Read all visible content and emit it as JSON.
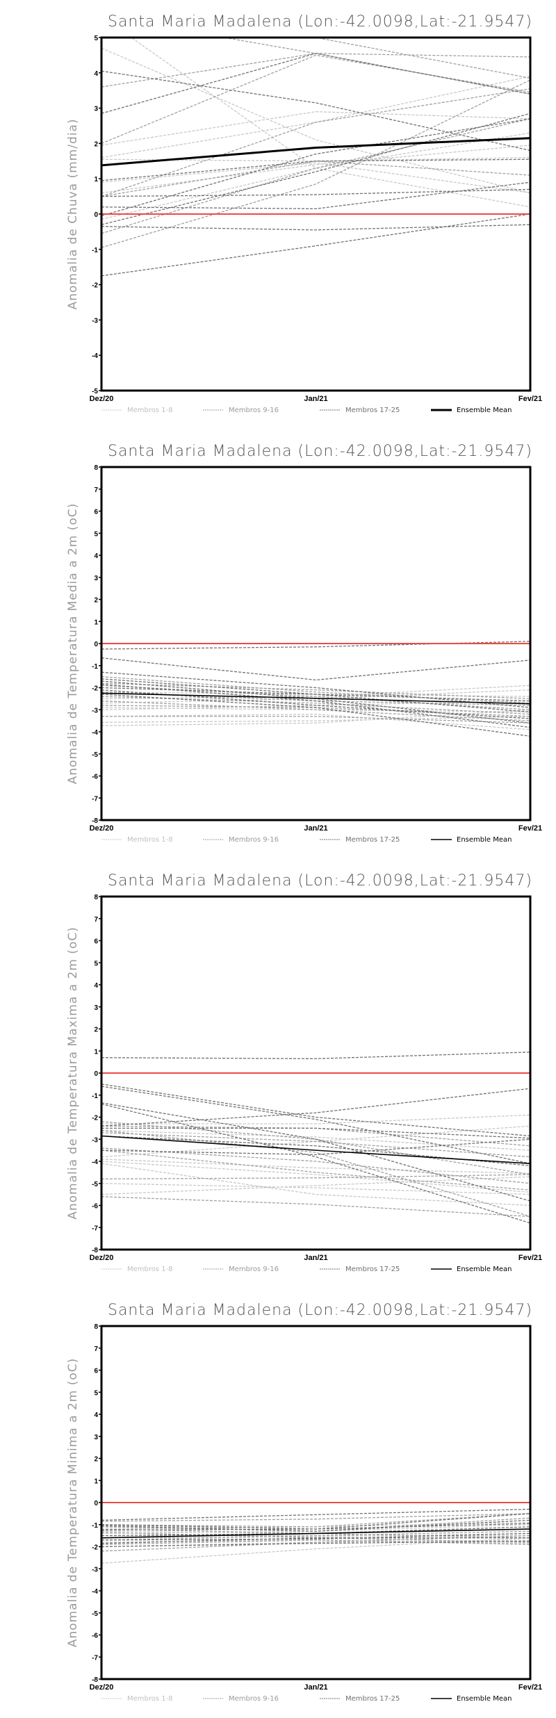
{
  "colors": {
    "members_1_8": "#c8c8c8",
    "members_9_16": "#a0a0a0",
    "members_17_25": "#707070",
    "mean": "#000000",
    "zero": "#f04848"
  },
  "chart_data": [
    {
      "type": "line",
      "title": "Santa Maria Madalena (Lon:-42.0098,Lat:-21.9547)",
      "ylabel": "Anomalia de Chuva (mm/dia)",
      "x": [
        "Dez/20",
        "Jan/21",
        "Fev/21"
      ],
      "ylim": [
        -5,
        5
      ],
      "yticks": [
        "-5",
        "-4",
        "-3",
        "-2",
        "-1",
        "0",
        "1",
        "2",
        "3",
        "4",
        "5"
      ],
      "legend": [
        "Membros 1-8",
        "Membros 9-16",
        "Membros 17-25",
        "Ensemble Mean"
      ],
      "members": [
        [
          4.7,
          2.1,
          0.6
        ],
        [
          5.6,
          1.3,
          0.2
        ],
        [
          1.95,
          2.9,
          2.7
        ],
        [
          1.6,
          2.6,
          3.9
        ],
        [
          1.55,
          1.5,
          1.6
        ],
        [
          0.6,
          1.4,
          1.95
        ],
        [
          -0.15,
          1.3,
          2.3
        ],
        [
          0.9,
          1.45,
          0.6
        ],
        [
          5.6,
          4.55,
          3.4
        ],
        [
          5.0,
          5.0,
          3.85
        ],
        [
          3.6,
          4.55,
          4.45
        ],
        [
          2.0,
          4.5,
          3.45
        ],
        [
          0.5,
          2.6,
          3.55
        ],
        [
          -0.55,
          1.3,
          2.7
        ],
        [
          0.5,
          1.5,
          1.1
        ],
        [
          -0.95,
          0.85,
          3.8
        ],
        [
          4.05,
          3.15,
          1.8
        ],
        [
          2.85,
          4.55,
          3.4
        ],
        [
          0.95,
          1.5,
          1.55
        ],
        [
          -0.05,
          1.7,
          2.7
        ],
        [
          0.5,
          0.55,
          0.7
        ],
        [
          0.2,
          0.15,
          0.9
        ],
        [
          -0.35,
          -0.45,
          -0.3
        ],
        [
          -1.75,
          -0.9,
          0.0
        ],
        [
          -0.3,
          1.2,
          2.85
        ]
      ],
      "mean": [
        1.38,
        1.88,
        2.15
      ],
      "mean_thick": true
    },
    {
      "type": "line",
      "title": "Santa Maria Madalena (Lon:-42.0098,Lat:-21.9547)",
      "ylabel": "Anomalia de Temperatura Media a 2m (oC)",
      "x": [
        "Dez/20",
        "Jan/21",
        "Fev/21"
      ],
      "ylim": [
        -8,
        8
      ],
      "yticks": [
        "-8",
        "-7",
        "-6",
        "-5",
        "-4",
        "-3",
        "-2",
        "-1",
        "0",
        "1",
        "2",
        "3",
        "4",
        "5",
        "6",
        "7",
        "8"
      ],
      "legend": [
        "Membros 1-8",
        "Membros 9-16",
        "Membros 17-25",
        "Ensemble Mean"
      ],
      "members": [
        [
          -2.5,
          -2.4,
          -1.9
        ],
        [
          -2.7,
          -2.5,
          -2.1
        ],
        [
          -3.0,
          -2.8,
          -2.6
        ],
        [
          -3.57,
          -3.5,
          -3.3
        ],
        [
          -3.72,
          -3.6,
          -3.0
        ],
        [
          -2.9,
          -3.0,
          -3.1
        ],
        [
          -2.2,
          -2.3,
          -2.4
        ],
        [
          -3.3,
          -3.2,
          -3.9
        ],
        [
          -1.5,
          -2.2,
          -2.7
        ],
        [
          -1.9,
          -2.4,
          -3.0
        ],
        [
          -2.4,
          -2.7,
          -3.2
        ],
        [
          -2.6,
          -3.0,
          -3.5
        ],
        [
          -2.2,
          -2.6,
          -2.8
        ],
        [
          -3.3,
          -3.3,
          -3.6
        ],
        [
          -1.8,
          -2.1,
          -2.5
        ],
        [
          -2.8,
          -2.9,
          -3.3
        ],
        [
          -0.25,
          -0.15,
          0.1
        ],
        [
          -0.65,
          -1.65,
          -0.75
        ],
        [
          -1.3,
          -2.0,
          -2.9
        ],
        [
          -1.6,
          -2.3,
          -3.1
        ],
        [
          -1.7,
          -2.5,
          -3.6
        ],
        [
          -2.0,
          -2.3,
          -2.6
        ],
        [
          -2.1,
          -2.8,
          -3.4
        ],
        [
          -2.3,
          -2.9,
          -4.2
        ],
        [
          -1.85,
          -2.6,
          -3.8
        ]
      ],
      "mean": [
        -2.25,
        -2.48,
        -2.73
      ],
      "mean_thick": false
    },
    {
      "type": "line",
      "title": "Santa Maria Madalena (Lon:-42.0098,Lat:-21.9547)",
      "ylabel": "Anomalia de Temperatura Maxima a 2m (oC)",
      "x": [
        "Dez/20",
        "Jan/21",
        "Fev/21"
      ],
      "ylim": [
        -8,
        8
      ],
      "yticks": [
        "-8",
        "-7",
        "-6",
        "-5",
        "-4",
        "-3",
        "-2",
        "-1",
        "0",
        "1",
        "2",
        "3",
        "4",
        "5",
        "6",
        "7",
        "8"
      ],
      "legend": [
        "Membros 1-8",
        "Membros 9-16",
        "Membros 17-25",
        "Ensemble Mean"
      ],
      "members": [
        [
          -2.3,
          -2.3,
          -1.9
        ],
        [
          -3.8,
          -3.1,
          -2.4
        ],
        [
          -4.0,
          -4.6,
          -5.4
        ],
        [
          -5.0,
          -5.2,
          -5.5
        ],
        [
          -5.5,
          -5.1,
          -4.7
        ],
        [
          -3.9,
          -4.3,
          -4.55
        ],
        [
          -2.6,
          -2.9,
          -3.5
        ],
        [
          -4.1,
          -5.5,
          -6.0
        ],
        [
          -2.6,
          -3.6,
          -6.5
        ],
        [
          -3.4,
          -4.0,
          -5.0
        ],
        [
          -5.6,
          -5.95,
          -6.5
        ],
        [
          -4.8,
          -4.75,
          -4.6
        ],
        [
          -2.2,
          -3.0,
          -4.6
        ],
        [
          -2.7,
          -3.1,
          -3.8
        ],
        [
          -2.4,
          -2.5,
          -3.3
        ],
        [
          -3.5,
          -4.5,
          -5.3
        ],
        [
          0.7,
          0.65,
          0.95
        ],
        [
          -0.5,
          -2.0,
          -2.85
        ],
        [
          -0.6,
          -2.1,
          -4.1
        ],
        [
          -1.35,
          -3.0,
          -5.8
        ],
        [
          -1.4,
          -3.8,
          -6.8
        ],
        [
          -2.4,
          -1.8,
          -0.7
        ],
        [
          -2.5,
          -2.5,
          -2.95
        ],
        [
          -2.85,
          -3.3,
          -4.2
        ],
        [
          -3.5,
          -3.7,
          -3.0
        ]
      ],
      "mean": [
        -2.85,
        -3.5,
        -4.1
      ],
      "mean_thick": false
    },
    {
      "type": "line",
      "title": "Santa Maria Madalena (Lon:-42.0098,Lat:-21.9547)",
      "ylabel": "Anomalia de Temperatura Minima a 2m (oC)",
      "x": [
        "Dez/20",
        "Jan/21",
        "Fev/21"
      ],
      "ylim": [
        -8,
        8
      ],
      "yticks": [
        "-8",
        "-7",
        "-6",
        "-5",
        "-4",
        "-3",
        "-2",
        "-1",
        "0",
        "1",
        "2",
        "3",
        "4",
        "5",
        "6",
        "7",
        "8"
      ],
      "legend": [
        "Membros 1-8",
        "Membros 9-16",
        "Membros 17-25",
        "Ensemble Mean"
      ],
      "members": [
        [
          -2.75,
          -2.1,
          -1.6
        ],
        [
          -1.3,
          -1.4,
          -1.2
        ],
        [
          -1.5,
          -1.5,
          -1.5
        ],
        [
          -1.8,
          -1.7,
          -1.85
        ],
        [
          -1.2,
          -1.1,
          -0.9
        ],
        [
          -1.4,
          -1.3,
          -1.0
        ],
        [
          -2.0,
          -1.8,
          -1.7
        ],
        [
          -1.6,
          -1.55,
          -1.4
        ],
        [
          -0.85,
          -0.75,
          -0.5
        ],
        [
          -1.0,
          -1.1,
          -0.5
        ],
        [
          -1.1,
          -1.3,
          -0.7
        ],
        [
          -1.7,
          -1.5,
          -1.3
        ],
        [
          -1.9,
          -1.7,
          -1.9
        ],
        [
          -2.2,
          -1.8,
          -1.5
        ],
        [
          -1.2,
          -1.4,
          -1.6
        ],
        [
          -1.35,
          -1.6,
          -1.8
        ],
        [
          -0.8,
          -0.55,
          -0.3
        ],
        [
          -1.0,
          -1.2,
          -0.5
        ],
        [
          -1.05,
          -1.3,
          -0.8
        ],
        [
          -1.5,
          -1.4,
          -1.1
        ],
        [
          -1.7,
          -1.65,
          -1.4
        ],
        [
          -1.85,
          -1.6,
          -1.6
        ],
        [
          -2.0,
          -1.85,
          -1.75
        ],
        [
          -1.6,
          -1.4,
          -1.2
        ],
        [
          -1.25,
          -1.2,
          -0.95
        ]
      ],
      "mean": [
        -1.6,
        -1.4,
        -1.2
      ],
      "mean_thick": false
    }
  ]
}
